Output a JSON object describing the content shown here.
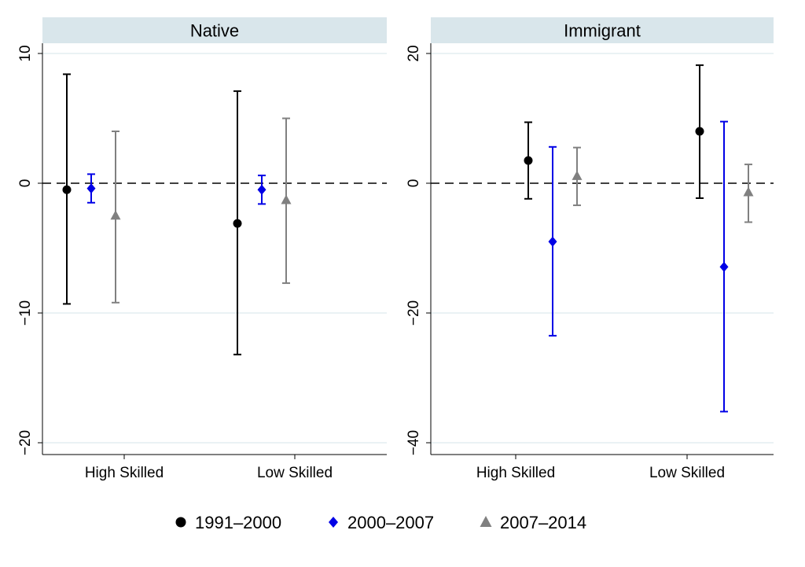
{
  "chart_data": {
    "type": "scatter",
    "subtype": "point-with-error-bars",
    "categories": [
      "High Skilled",
      "Low Skilled"
    ],
    "legend": {
      "placement": "bottom",
      "items": [
        {
          "label": "1991–2000",
          "color": "#000000",
          "marker": "circle"
        },
        {
          "label": "2000–2007",
          "color": "#0000e6",
          "marker": "diamond"
        },
        {
          "label": "2007–2014",
          "color": "#808080",
          "marker": "triangle"
        }
      ]
    },
    "reference_line": {
      "y": 0,
      "style": "dashed"
    },
    "panels": [
      {
        "title": "Native",
        "ylim": [
          -21,
          10.5
        ],
        "yticks": [
          10,
          0,
          -10,
          -20
        ],
        "ytick_labels": [
          "10",
          "0",
          "−10",
          "−20"
        ],
        "gridlines": [
          10,
          -10,
          -20
        ],
        "points": [
          {
            "category": "High Skilled",
            "series": "1991–2000",
            "y": -0.5,
            "lo": -9.3,
            "hi": 8.4
          },
          {
            "category": "High Skilled",
            "series": "2000–2007",
            "y": -0.4,
            "lo": -1.5,
            "hi": 0.7
          },
          {
            "category": "High Skilled",
            "series": "2007–2014",
            "y": -2.5,
            "lo": -9.2,
            "hi": 4.0
          },
          {
            "category": "Low Skilled",
            "series": "1991–2000",
            "y": -3.1,
            "lo": -13.2,
            "hi": 7.1
          },
          {
            "category": "Low Skilled",
            "series": "2000–2007",
            "y": -0.5,
            "lo": -1.6,
            "hi": 0.6
          },
          {
            "category": "Low Skilled",
            "series": "2007–2014",
            "y": -1.3,
            "lo": -7.7,
            "hi": 5.0
          }
        ]
      },
      {
        "title": "Immigrant",
        "ylim": [
          -41,
          21
        ],
        "yticks": [
          20,
          0,
          -20,
          -40
        ],
        "ytick_labels": [
          "20",
          "0",
          "−20",
          "−40"
        ],
        "gridlines": [
          20,
          -20,
          -40
        ],
        "points": [
          {
            "category": "High Skilled",
            "series": "1991–2000",
            "y": 3.5,
            "lo": -2.4,
            "hi": 9.4
          },
          {
            "category": "High Skilled",
            "series": "2000–2007",
            "y": -9.0,
            "lo": -23.5,
            "hi": 5.6
          },
          {
            "category": "High Skilled",
            "series": "2007–2014",
            "y": 1.1,
            "lo": -3.4,
            "hi": 5.5
          },
          {
            "category": "Low Skilled",
            "series": "1991–2000",
            "y": 8.0,
            "lo": -2.3,
            "hi": 18.2
          },
          {
            "category": "Low Skilled",
            "series": "2000–2007",
            "y": -12.9,
            "lo": -35.2,
            "hi": 9.5
          },
          {
            "category": "Low Skilled",
            "series": "2007–2014",
            "y": -1.4,
            "lo": -6.0,
            "hi": 2.9
          }
        ]
      }
    ]
  }
}
